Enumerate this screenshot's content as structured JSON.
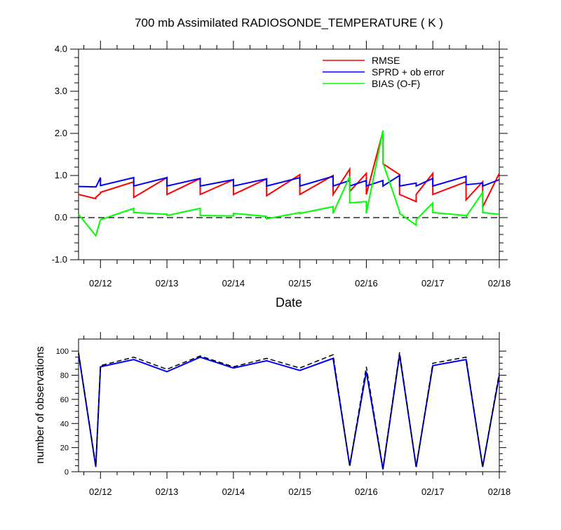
{
  "chart_data": [
    {
      "type": "line",
      "title": "700 mb Assimilated RADIOSONDE_TEMPERATURE ( K )",
      "xlabel": "Date",
      "ylabel": "",
      "x_tick_labels": [
        "02/12",
        "02/13",
        "02/14",
        "02/15",
        "02/16",
        "02/17",
        "02/18"
      ],
      "x_tick_values": [
        1,
        2,
        3,
        4,
        5,
        6,
        7
      ],
      "xlim": [
        0.67,
        7.0
      ],
      "ylim": [
        -1.0,
        4.0
      ],
      "y_tick_labels": [
        "-1.0",
        "0.0",
        "1.0",
        "2.0",
        "3.0",
        "4.0"
      ],
      "legend_position": "top-right",
      "reference_line": {
        "y": 0.0,
        "style": "dashed"
      },
      "series": [
        {
          "name": "RMSE",
          "color": "#ff0000",
          "x": [
            0.67,
            0.93,
            0.93,
            1.0,
            1.0,
            1.5,
            1.5,
            2.0,
            2.0,
            2.5,
            2.5,
            3.0,
            3.0,
            3.5,
            3.5,
            4.0,
            4.0,
            4.5,
            4.5,
            4.75,
            4.75,
            5.0,
            5.0,
            5.25,
            5.25,
            5.5,
            5.5,
            5.75,
            5.75,
            6.0,
            6.0,
            6.5,
            6.5,
            6.75,
            6.75,
            7.0
          ],
          "values": [
            0.55,
            0.45,
            0.48,
            0.58,
            0.6,
            0.85,
            0.48,
            0.95,
            0.55,
            0.93,
            0.55,
            0.9,
            0.55,
            0.92,
            0.52,
            1.02,
            0.55,
            1.0,
            0.55,
            1.15,
            0.62,
            1.05,
            0.55,
            2.05,
            1.28,
            1.02,
            0.55,
            0.38,
            0.55,
            1.05,
            0.55,
            0.85,
            0.42,
            0.85,
            0.25,
            1.05
          ]
        },
        {
          "name": "SPRD + ob error",
          "color": "#0000ff",
          "x": [
            0.67,
            0.93,
            0.93,
            1.0,
            1.0,
            1.5,
            1.5,
            2.0,
            2.0,
            2.5,
            2.5,
            3.0,
            3.0,
            3.5,
            3.5,
            4.0,
            4.0,
            4.5,
            4.5,
            4.75,
            4.75,
            5.0,
            5.0,
            5.25,
            5.25,
            5.5,
            5.5,
            5.75,
            5.75,
            6.0,
            6.0,
            6.5,
            6.5,
            6.75,
            6.75,
            7.0
          ],
          "values": [
            0.74,
            0.73,
            0.72,
            0.95,
            0.76,
            0.95,
            0.75,
            0.95,
            0.75,
            0.93,
            0.75,
            0.9,
            0.75,
            0.92,
            0.75,
            0.95,
            0.75,
            0.98,
            0.75,
            0.88,
            0.75,
            0.88,
            0.75,
            0.88,
            0.75,
            1.0,
            0.75,
            0.82,
            0.75,
            0.93,
            0.75,
            0.98,
            0.78,
            0.82,
            0.75,
            0.9
          ]
        },
        {
          "name": "BIAS (O-F)",
          "color": "#00ff00",
          "x": [
            0.67,
            0.93,
            1.0,
            1.5,
            1.5,
            2.0,
            2.0,
            2.5,
            2.5,
            3.0,
            3.0,
            3.5,
            3.5,
            4.0,
            4.0,
            4.5,
            4.5,
            4.75,
            4.75,
            5.0,
            5.0,
            5.25,
            5.25,
            5.5,
            5.5,
            5.75,
            5.75,
            6.0,
            6.0,
            6.5,
            6.5,
            6.75,
            6.75,
            7.0
          ],
          "values": [
            0.08,
            -0.43,
            -0.05,
            0.22,
            0.12,
            0.08,
            0.05,
            0.22,
            0.05,
            0.04,
            0.1,
            0.03,
            -0.03,
            0.12,
            0.1,
            0.26,
            0.1,
            0.98,
            0.35,
            0.38,
            0.1,
            2.07,
            1.3,
            0.15,
            0.1,
            -0.18,
            -0.05,
            0.35,
            0.12,
            0.05,
            0.02,
            0.6,
            0.12,
            0.08
          ]
        }
      ]
    },
    {
      "type": "line",
      "title": "",
      "xlabel": "",
      "ylabel": "number of observations",
      "x_tick_labels": [
        "02/12",
        "02/13",
        "02/14",
        "02/15",
        "02/16",
        "02/17",
        "02/18"
      ],
      "x_tick_values": [
        1,
        2,
        3,
        4,
        5,
        6,
        7
      ],
      "xlim": [
        0.67,
        7.0
      ],
      "ylim": [
        0,
        110
      ],
      "y_tick_labels": [
        "0",
        "20",
        "40",
        "60",
        "80",
        "100"
      ],
      "series": [
        {
          "name": "",
          "color": "#0000ff",
          "style": "solid",
          "x": [
            0.67,
            0.93,
            1.0,
            1.5,
            2.0,
            2.5,
            3.0,
            3.5,
            4.0,
            4.5,
            4.75,
            5.0,
            5.25,
            5.5,
            5.75,
            6.0,
            6.5,
            6.75,
            7.0
          ],
          "values": [
            98,
            4,
            87,
            93,
            83,
            95,
            86,
            92,
            84,
            94,
            5,
            83,
            2,
            97,
            4,
            88,
            93,
            4,
            80
          ]
        },
        {
          "name": "",
          "color": "#000000",
          "style": "dashed",
          "x": [
            0.67,
            0.93,
            1.0,
            1.5,
            2.0,
            2.5,
            3.0,
            3.5,
            4.0,
            4.5,
            4.75,
            5.0,
            5.25,
            5.5,
            5.75,
            6.0,
            6.5,
            6.75,
            7.0
          ],
          "values": [
            99,
            5,
            88,
            95,
            85,
            96,
            87,
            94,
            86,
            97,
            5,
            87,
            3,
            99,
            4,
            90,
            95,
            4,
            82
          ]
        }
      ]
    }
  ]
}
